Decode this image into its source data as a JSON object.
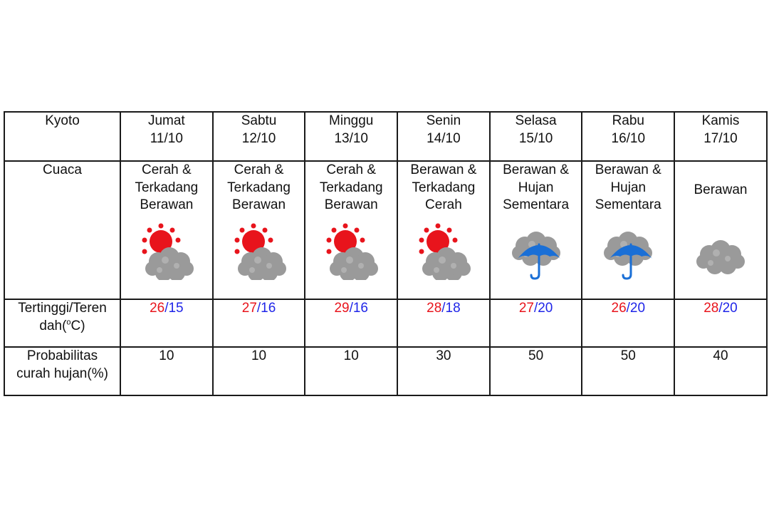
{
  "table": {
    "city": "Kyoto",
    "row_labels": {
      "weather": "Cuaca",
      "temp_line1": "Tertinggi/Teren",
      "temp_line2_pre": "dah(",
      "temp_degree": "o",
      "temp_line2_post": "C)",
      "rain_line1": "Probabilitas",
      "rain_line2": "curah hujan(%)"
    },
    "days": [
      {
        "day": "Jumat",
        "date": "11/10",
        "desc": [
          "Cerah &",
          "Terkadang",
          "Berawan"
        ],
        "icon": "sun-cloud-icon",
        "high": "26",
        "low": "15",
        "rain": "10"
      },
      {
        "day": "Sabtu",
        "date": "12/10",
        "desc": [
          "Cerah &",
          "Terkadang",
          "Berawan"
        ],
        "icon": "sun-cloud-icon",
        "high": "27",
        "low": "16",
        "rain": "10"
      },
      {
        "day": "Minggu",
        "date": "13/10",
        "desc": [
          "Cerah &",
          "Terkadang",
          "Berawan"
        ],
        "icon": "sun-cloud-icon",
        "high": "29",
        "low": "16",
        "rain": "10"
      },
      {
        "day": "Senin",
        "date": "14/10",
        "desc": [
          "Berawan &",
          "Terkadang",
          "Cerah"
        ],
        "icon": "sun-cloud-icon",
        "high": "28",
        "low": "18",
        "rain": "30"
      },
      {
        "day": "Selasa",
        "date": "15/10",
        "desc": [
          "Berawan &",
          "Hujan",
          "Sementara"
        ],
        "icon": "cloud-umbrella-icon",
        "high": "27",
        "low": "20",
        "rain": "50"
      },
      {
        "day": "Rabu",
        "date": "16/10",
        "desc": [
          "Berawan &",
          "Hujan",
          "Sementara"
        ],
        "icon": "cloud-umbrella-icon",
        "high": "26",
        "low": "20",
        "rain": "50"
      },
      {
        "day": "Kamis",
        "date": "17/10",
        "desc": [
          "Berawan"
        ],
        "icon": "cloud-icon",
        "high": "28",
        "low": "20",
        "rain": "40"
      }
    ],
    "temp_separator": "/"
  },
  "colors": {
    "high_temp": "#e8141c",
    "low_temp": "#1f25e8",
    "sun": "#e8141c",
    "cloud": "#999999",
    "umbrella": "#1a6fd6"
  }
}
